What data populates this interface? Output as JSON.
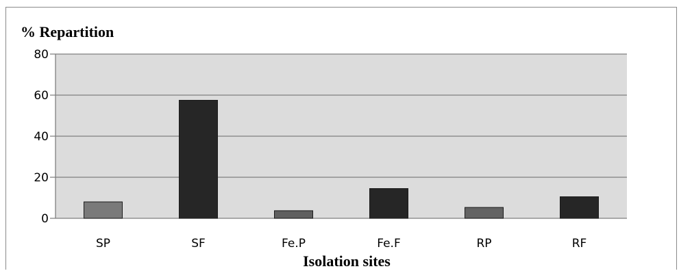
{
  "chart_data": {
    "type": "bar",
    "title": "",
    "ylabel": "% Repartition",
    "xlabel": "Isolation sites",
    "categories": [
      "SP",
      "SF",
      "Fe.P",
      "Fe.F",
      "RP",
      "RF"
    ],
    "values": [
      8,
      57.5,
      3.7,
      14.5,
      5.3,
      10.5
    ],
    "ylim": [
      0,
      80
    ],
    "yticks": [
      0,
      20,
      40,
      60,
      80
    ],
    "grid": true,
    "colors": {
      "plot_background": "#dcdcdc",
      "bar_light": "#7a7a7a",
      "bar_dark": "#262626",
      "gridline": "#7f7f7f"
    },
    "bar_colors": [
      "#7a7a7a",
      "#262626",
      "#5f5f5f",
      "#262626",
      "#636363",
      "#262626"
    ]
  }
}
